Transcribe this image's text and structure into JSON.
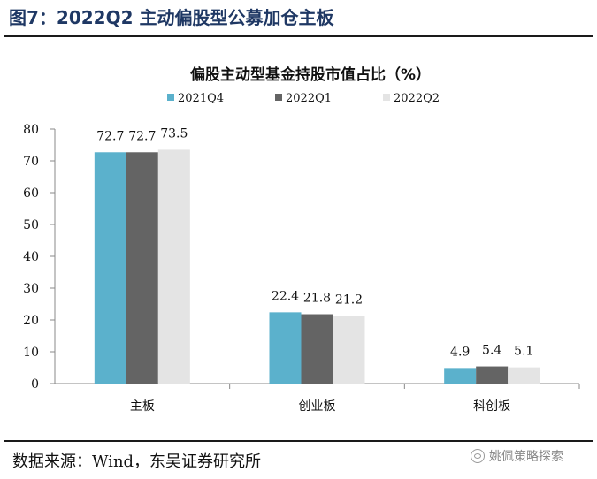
{
  "figure_title": "图7：2022Q2 主动偏股型公募加仓主板",
  "source": "数据来源：Wind，东吴证券研究所",
  "watermark": "姚佩策略探索",
  "watermark_icon": "wechat-icon",
  "chart_data": {
    "type": "bar",
    "title": "偏股主动型基金持股市值占比（%）",
    "categories": [
      "主板",
      "创业板",
      "科创板"
    ],
    "series": [
      {
        "name": "2021Q4",
        "color": "#5bb1cc",
        "values": [
          72.7,
          22.4,
          4.9
        ]
      },
      {
        "name": "2022Q1",
        "color": "#646464",
        "values": [
          72.7,
          21.8,
          5.4
        ]
      },
      {
        "name": "2022Q2",
        "color": "#e4e4e4",
        "values": [
          73.5,
          21.2,
          5.1
        ]
      }
    ],
    "ylim": [
      0,
      80
    ],
    "yticks": [
      0,
      10,
      20,
      30,
      40,
      50,
      60,
      70,
      80
    ],
    "xlabel": "",
    "ylabel": "",
    "legend": "top",
    "grid": false,
    "data_labels": true
  }
}
